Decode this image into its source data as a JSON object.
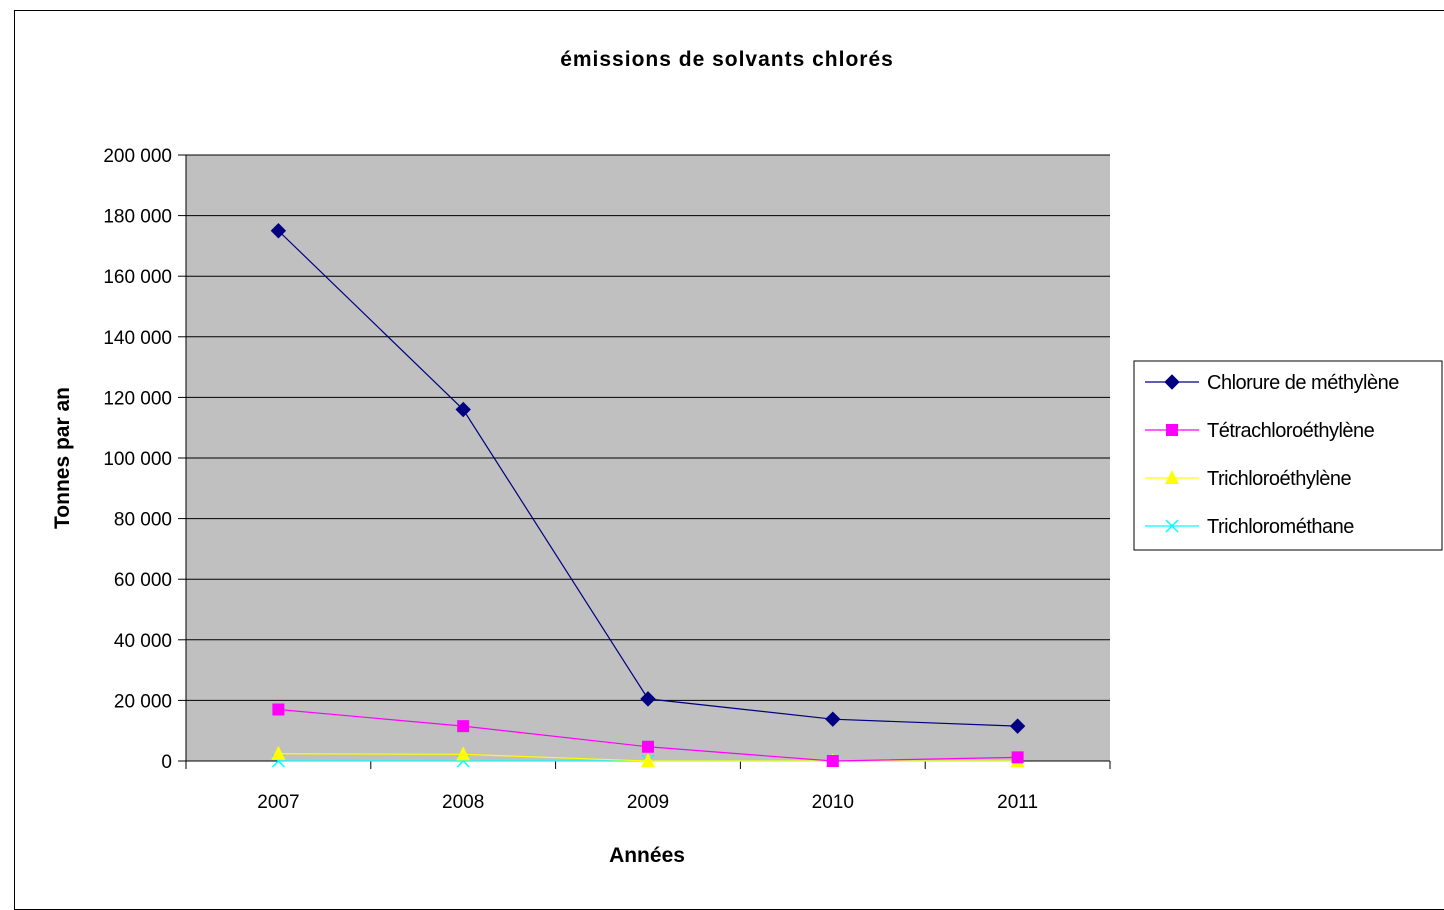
{
  "chart_data": {
    "type": "line",
    "title": "émissions de solvants chlorés",
    "xlabel": "Années",
    "ylabel": "Tonnes par an",
    "categories": [
      "2007",
      "2008",
      "2009",
      "2010",
      "2011"
    ],
    "ylim": [
      0,
      200000
    ],
    "yticks": [
      0,
      20000,
      40000,
      60000,
      80000,
      100000,
      120000,
      140000,
      160000,
      180000,
      200000
    ],
    "ytick_labels": [
      "0",
      "20 000",
      "40 000",
      "60 000",
      "80 000",
      "100 000",
      "120 000",
      "140 000",
      "160 000",
      "180 000",
      "200 000"
    ],
    "grid": true,
    "plot_background": "#c0c0c0",
    "legend_position": "right",
    "series": [
      {
        "name": "Chlorure de méthylène",
        "color": "#000080",
        "marker": "diamond",
        "values": [
          175000,
          116000,
          20500,
          13800,
          11500
        ]
      },
      {
        "name": "Tétrachloroéthylène",
        "color": "#ff00ff",
        "marker": "square",
        "values": [
          17000,
          11500,
          4700,
          0,
          1200
        ]
      },
      {
        "name": "Trichloroéthylène",
        "color": "#ffff00",
        "marker": "triangle",
        "values": [
          2400,
          2200,
          0,
          0,
          0
        ]
      },
      {
        "name": "Trichlorométhane",
        "color": "#00ffff",
        "marker": "x",
        "values": [
          0,
          0,
          0,
          0,
          0
        ]
      }
    ]
  }
}
